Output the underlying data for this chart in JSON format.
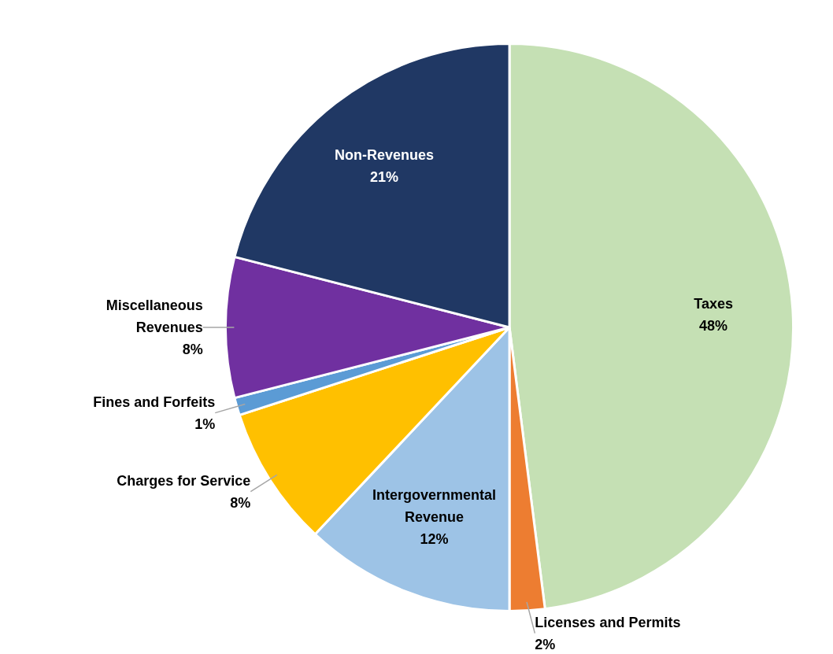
{
  "chart_data": {
    "type": "pie",
    "categories": [
      "Taxes",
      "Licenses and Permits",
      "Intergovernmental Revenue",
      "Charges for Service",
      "Fines and Forfeits",
      "Miscellaneous Revenues",
      "Non-Revenues"
    ],
    "values": [
      48,
      2,
      12,
      8,
      1,
      8,
      21
    ],
    "value_labels": [
      "48%",
      "2%",
      "12%",
      "8%",
      "1%",
      "8%",
      "21%"
    ],
    "colors": [
      "#c5e0b4",
      "#ed7d31",
      "#9dc3e6",
      "#ffc000",
      "#5b9bd5",
      "#7030a0",
      "#203864"
    ]
  }
}
